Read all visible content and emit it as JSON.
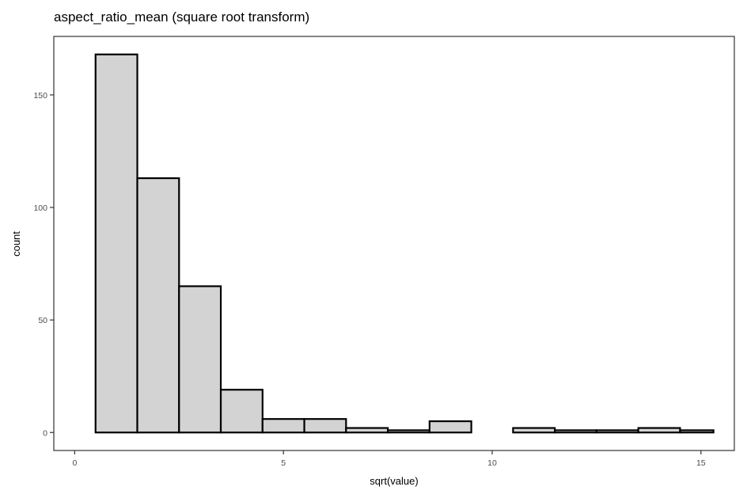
{
  "chart_data": {
    "type": "bar",
    "title": "aspect_ratio_mean (square root transform)",
    "xlabel": "sqrt(value)",
    "ylabel": "count",
    "xlim": [
      -0.5,
      15.8
    ],
    "ylim": [
      -8,
      176
    ],
    "xticks": [
      0,
      5,
      10,
      15
    ],
    "yticks": [
      0,
      50,
      100,
      150
    ],
    "grid": false,
    "bin_width": 1,
    "bins": [
      {
        "x0": 0.5,
        "x1": 1.5,
        "count": 168
      },
      {
        "x0": 1.5,
        "x1": 2.5,
        "count": 113
      },
      {
        "x0": 2.5,
        "x1": 3.5,
        "count": 65
      },
      {
        "x0": 3.5,
        "x1": 4.5,
        "count": 19
      },
      {
        "x0": 4.5,
        "x1": 5.5,
        "count": 6
      },
      {
        "x0": 5.5,
        "x1": 6.5,
        "count": 6
      },
      {
        "x0": 6.5,
        "x1": 7.5,
        "count": 2
      },
      {
        "x0": 7.5,
        "x1": 8.5,
        "count": 1
      },
      {
        "x0": 8.5,
        "x1": 9.5,
        "count": 5
      },
      {
        "x0": 9.5,
        "x1": 10.5,
        "count": 0
      },
      {
        "x0": 10.5,
        "x1": 11.5,
        "count": 2
      },
      {
        "x0": 11.5,
        "x1": 12.5,
        "count": 1
      },
      {
        "x0": 12.5,
        "x1": 13.5,
        "count": 1
      },
      {
        "x0": 13.5,
        "x1": 14.5,
        "count": 2
      },
      {
        "x0": 14.5,
        "x1": 15.3,
        "count": 1
      }
    ],
    "colors": {
      "bar_fill": "#d3d3d3",
      "bar_stroke": "#000000"
    }
  }
}
